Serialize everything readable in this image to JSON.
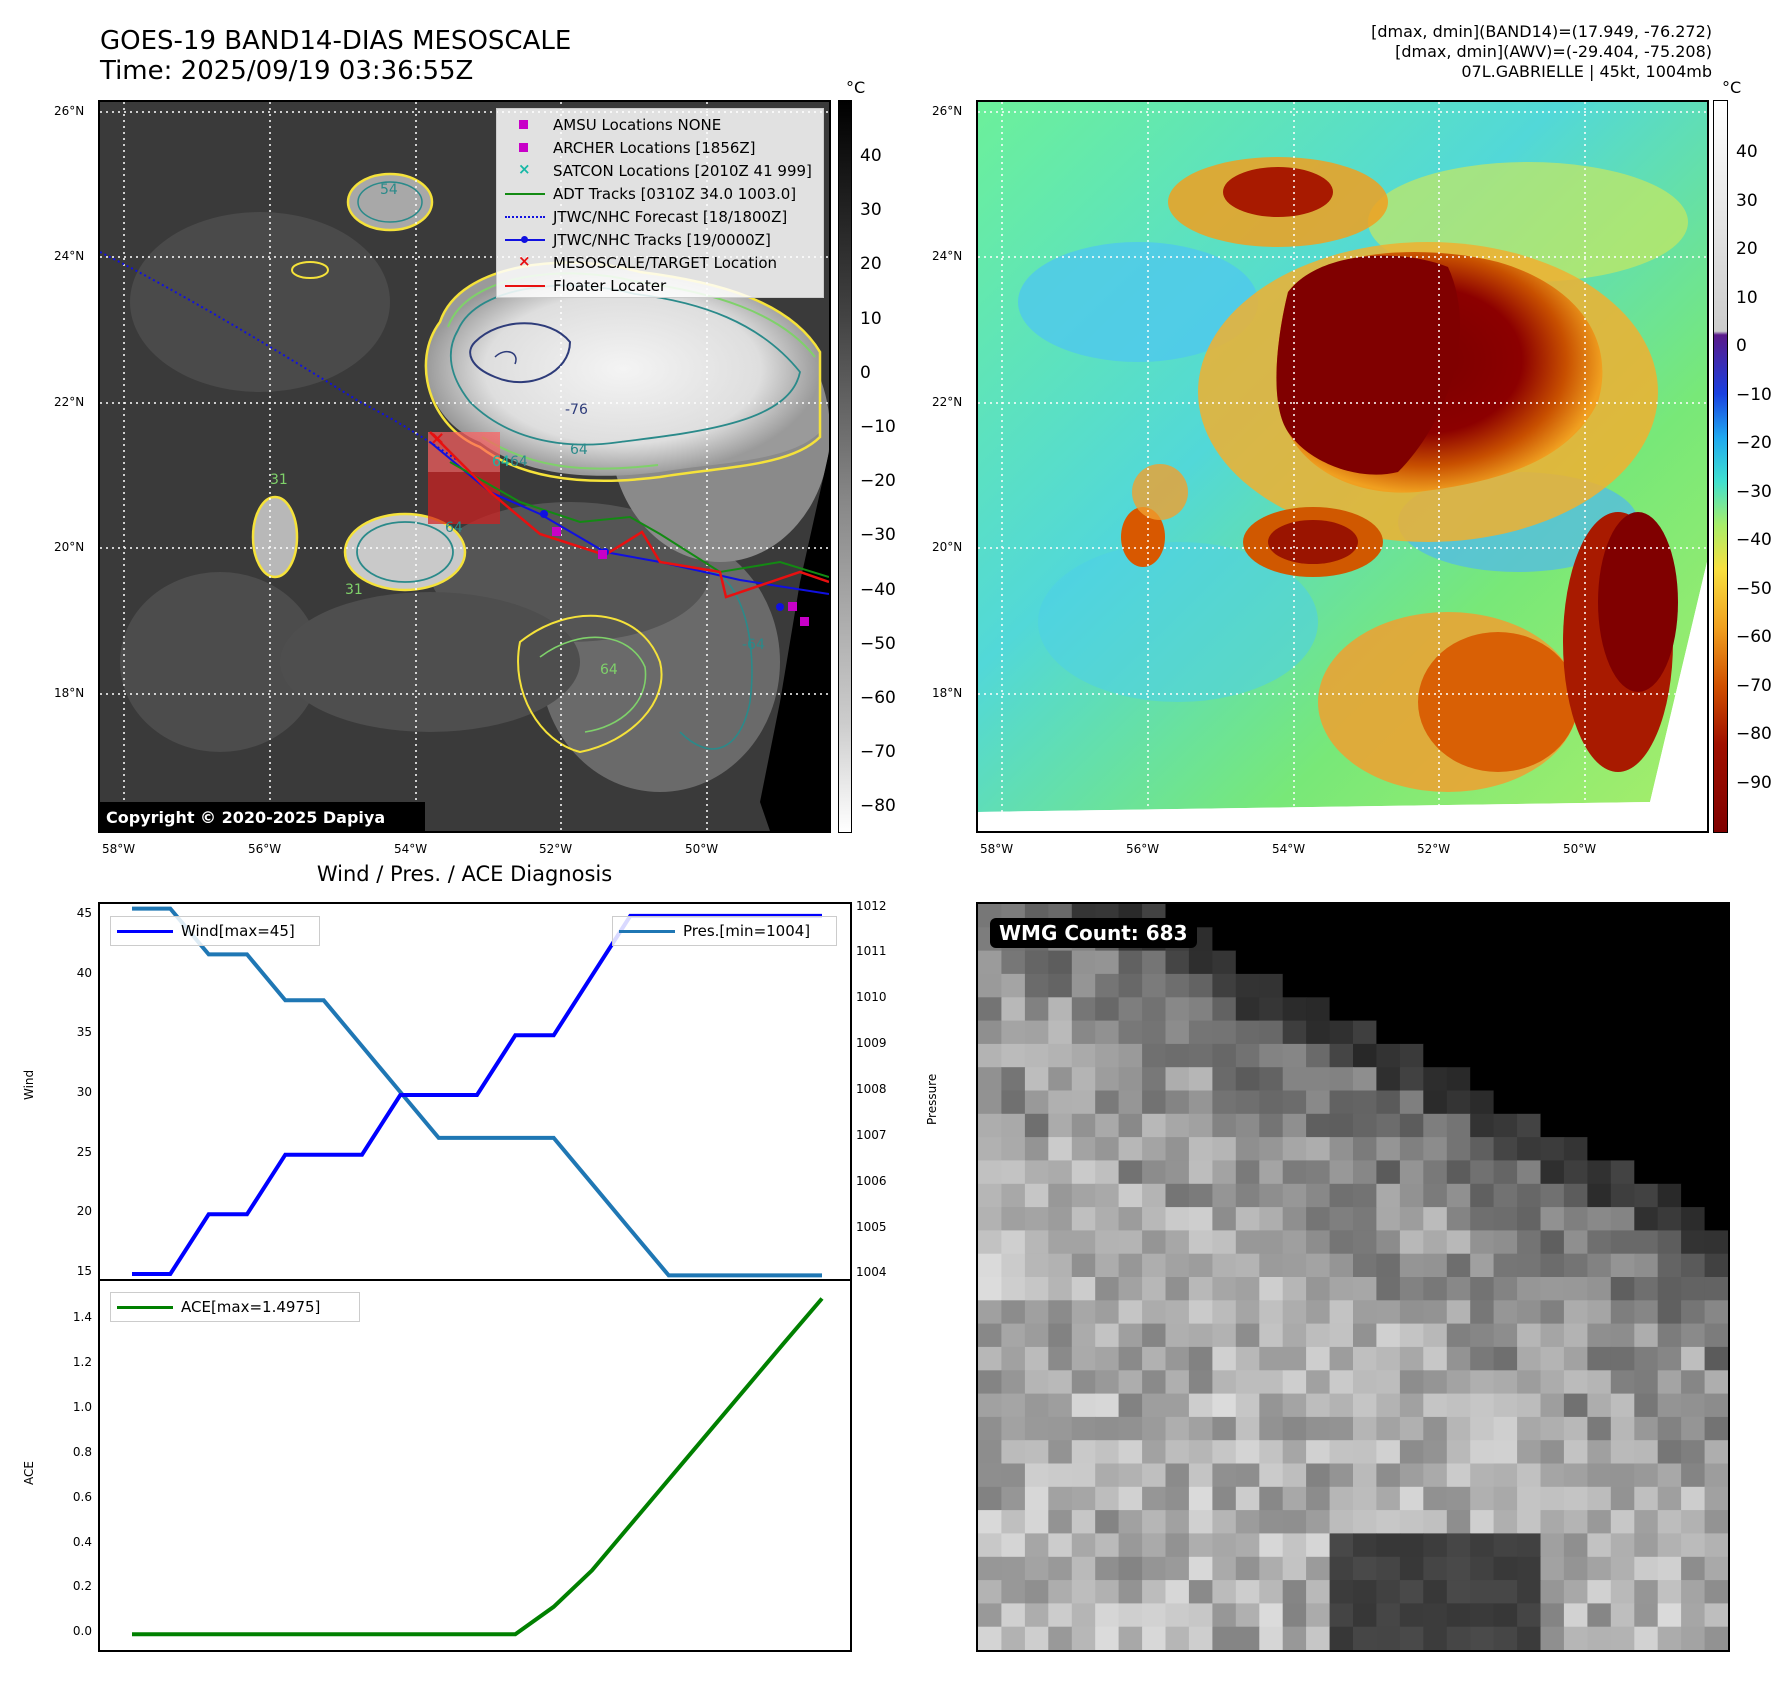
{
  "header": {
    "title_line1": "GOES-19 BAND14-DIAS MESOSCALE",
    "title_line2": "Time: 2025/09/19 03:36:55Z",
    "info_line1": "[dmax, dmin](BAND14)=(17.949, -76.272)",
    "info_line2": "[dmax, dmin](AWV)=(-29.404, -75.208)",
    "info_line3": "07L.GABRIELLE | 45kt, 1004mb"
  },
  "map_axes": {
    "lat_labels": [
      "26°N",
      "24°N",
      "22°N",
      "20°N",
      "18°N"
    ],
    "lon_labels": [
      "58°W",
      "56°W",
      "54°W",
      "52°W",
      "50°W"
    ]
  },
  "left_map": {
    "copyright": "Copyright © 2020-2025 Dapiya",
    "contour_labels": [
      "54",
      "-76",
      "64",
      "64",
      "-64",
      "64",
      "31",
      "31",
      "64"
    ],
    "legend": [
      {
        "label": "AMSU Locations NONE",
        "symbol": "square",
        "color": "#c800c8"
      },
      {
        "label": "ARCHER Locations [1856Z]",
        "symbol": "square",
        "color": "#c800c8"
      },
      {
        "label": "SATCON Locations [2010Z 41 999]",
        "symbol": "x",
        "color": "#17b8a6"
      },
      {
        "label": "ADT Tracks [0310Z 34.0 1003.0]",
        "symbol": "line",
        "color": "#138a13"
      },
      {
        "label": "JTWC/NHC Forecast [18/1800Z]",
        "symbol": "dotted",
        "color": "#1010e0"
      },
      {
        "label": "JTWC/NHC Tracks [19/0000Z]",
        "symbol": "line-dot",
        "color": "#1010e0"
      },
      {
        "label": "MESOSCALE/TARGET Location",
        "symbol": "x",
        "color": "#e81010"
      },
      {
        "label": "Floater Locater",
        "symbol": "line",
        "color": "#e81010"
      }
    ],
    "colorbar_unit": "°C",
    "colorbar_ticks": [
      "40",
      "30",
      "20",
      "10",
      "0",
      "−10",
      "−20",
      "−30",
      "−40",
      "−50",
      "−60",
      "−70",
      "−80"
    ]
  },
  "right_map": {
    "colorbar_unit": "°C",
    "colorbar_ticks": [
      "40",
      "30",
      "20",
      "10",
      "0",
      "−10",
      "−20",
      "−30",
      "−40",
      "−50",
      "−60",
      "−70",
      "−80",
      "−90"
    ]
  },
  "wmg": {
    "badge": "WMG Count: 683"
  },
  "chart_data": [
    {
      "type": "line",
      "title": "Wind / Pres. / ACE Diagnosis",
      "ylabel": "Wind",
      "ylabel_right": "Pressure",
      "x": [
        0,
        1,
        2,
        3,
        4,
        5,
        6,
        7,
        8,
        9,
        10,
        11,
        12,
        13,
        14,
        15,
        16,
        17,
        18
      ],
      "series": [
        {
          "name": "Wind[max=45]",
          "axis": "left",
          "color": "#0000ff",
          "values": [
            15,
            15,
            20,
            20,
            25,
            25,
            25,
            30,
            30,
            30,
            35,
            35,
            40,
            45,
            45,
            45,
            45,
            45,
            45
          ]
        },
        {
          "name": "Pres.[min=1004]",
          "axis": "right",
          "color": "#1f77b4",
          "values": [
            1012,
            1012,
            1011,
            1011,
            1010,
            1010,
            1009,
            1008,
            1007,
            1007,
            1007,
            1007,
            1006,
            1005,
            1004,
            1004,
            1004,
            1004,
            1004
          ]
        }
      ],
      "ylim": [
        14.5,
        46
      ],
      "ylim_right": [
        1003.9,
        1012.1
      ],
      "yticks": [
        15,
        20,
        25,
        30,
        35,
        40,
        45
      ],
      "yticks_right": [
        1004,
        1005,
        1006,
        1007,
        1008,
        1009,
        1010,
        1011,
        1012
      ]
    },
    {
      "type": "line",
      "ylabel": "ACE",
      "x": [
        0,
        1,
        2,
        3,
        4,
        5,
        6,
        7,
        8,
        9,
        10,
        11,
        12,
        13,
        14,
        15,
        16,
        17,
        18
      ],
      "series": [
        {
          "name": "ACE[max=1.4975]",
          "color": "#008000",
          "values": [
            0,
            0,
            0,
            0,
            0,
            0,
            0,
            0,
            0,
            0,
            0,
            0.1225,
            0.285,
            0.4875,
            0.69,
            0.8925,
            1.095,
            1.2975,
            1.4975
          ]
        }
      ],
      "ylim": [
        -0.07,
        1.58
      ],
      "yticks": [
        0.0,
        0.2,
        0.4,
        0.6,
        0.8,
        1.0,
        1.2,
        1.4
      ],
      "ytick_labels": [
        "0.0",
        "0.2",
        "0.4",
        "0.6",
        "0.8",
        "1.0",
        "1.2",
        "1.4"
      ]
    }
  ]
}
